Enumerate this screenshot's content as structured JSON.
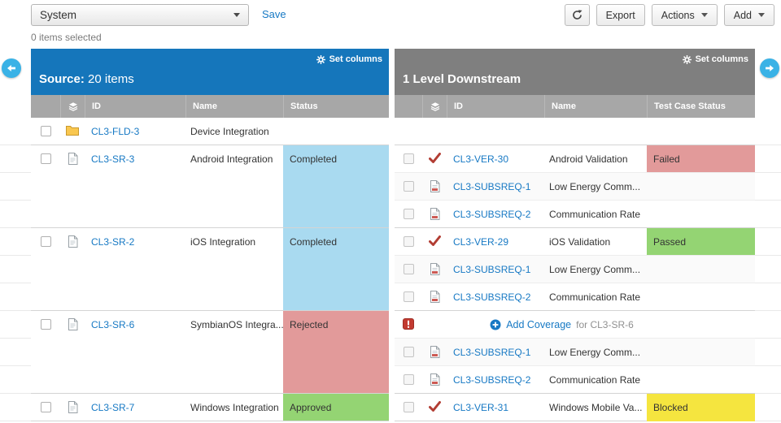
{
  "toolbar": {
    "view_dropdown_value": "System",
    "save_label": "Save",
    "export_label": "Export",
    "actions_label": "Actions",
    "add_label": "Add",
    "selection_status": "0 items selected"
  },
  "panels": {
    "source": {
      "set_columns_label": "Set columns",
      "title_label": "Source:",
      "title_count": "20 items",
      "columns": {
        "id": "ID",
        "name": "Name",
        "status": "Status"
      }
    },
    "downstream": {
      "set_columns_label": "Set columns",
      "title": "1 Level Downstream",
      "columns": {
        "id": "ID",
        "name": "Name",
        "status": "Test Case Status"
      }
    }
  },
  "icons": {
    "set_columns": "gear-icon",
    "item_type_column": "item-stack-icon",
    "refresh": "refresh-icon",
    "scroll_left": "arrow-left-icon",
    "scroll_right": "arrow-right-icon",
    "add_coverage_plus": "plus-circle-icon"
  },
  "colors": {
    "source_header": "#1576bb",
    "downstream_header": "#7f7f7f",
    "link": "#1779c4"
  },
  "status_colors": {
    "Completed": "#a9daf0",
    "Approved": "#94d473",
    "Rejected": "#e29a9a",
    "Failed": "#e29a9a",
    "Passed": "#94d473",
    "Blocked": "#f5e53f"
  },
  "groups": [
    {
      "source": {
        "icon": "folder-icon",
        "id": "CL3-FLD-3",
        "name": "Device Integration",
        "status": ""
      },
      "downstream_rows": [
        {
          "type": "empty"
        }
      ]
    },
    {
      "source": {
        "icon": "document-icon",
        "id": "CL3-SR-3",
        "name": "Android Integration",
        "status": "Completed"
      },
      "downstream_rows": [
        {
          "type": "item",
          "icon": "verification-check-icon",
          "id": "CL3-VER-30",
          "name": "Android Validation",
          "status": "Failed"
        },
        {
          "type": "item",
          "icon": "document-red-icon",
          "id": "CL3-SUBSREQ-1",
          "name": "Low Energy Comm...",
          "status": ""
        },
        {
          "type": "item",
          "icon": "document-red-icon",
          "id": "CL3-SUBSREQ-2",
          "name": "Communication Rate",
          "status": ""
        }
      ]
    },
    {
      "source": {
        "icon": "document-icon",
        "id": "CL3-SR-2",
        "name": "iOS Integration",
        "status": "Completed"
      },
      "downstream_rows": [
        {
          "type": "item",
          "icon": "verification-check-icon",
          "id": "CL3-VER-29",
          "name": "iOS Validation",
          "status": "Passed"
        },
        {
          "type": "item",
          "icon": "document-red-icon",
          "id": "CL3-SUBSREQ-1",
          "name": "Low Energy Comm...",
          "status": ""
        },
        {
          "type": "item",
          "icon": "document-red-icon",
          "id": "CL3-SUBSREQ-2",
          "name": "Communication Rate",
          "status": ""
        }
      ]
    },
    {
      "source": {
        "icon": "document-icon",
        "id": "CL3-SR-6",
        "name": "SymbianOS Integra...",
        "status": "Rejected"
      },
      "downstream_rows": [
        {
          "type": "add-coverage",
          "icon": "alert-icon",
          "link_label": "Add Coverage",
          "suffix": "for CL3-SR-6"
        },
        {
          "type": "item",
          "icon": "document-red-icon",
          "id": "CL3-SUBSREQ-1",
          "name": "Low Energy Comm...",
          "status": ""
        },
        {
          "type": "item",
          "icon": "document-red-icon",
          "id": "CL3-SUBSREQ-2",
          "name": "Communication Rate",
          "status": ""
        }
      ]
    },
    {
      "source": {
        "icon": "document-icon",
        "id": "CL3-SR-7",
        "name": "Windows Integration",
        "status": "Approved"
      },
      "downstream_rows": [
        {
          "type": "item",
          "icon": "verification-check-icon",
          "id": "CL3-VER-31",
          "name": "Windows Mobile Va...",
          "status": "Blocked"
        }
      ]
    }
  ]
}
